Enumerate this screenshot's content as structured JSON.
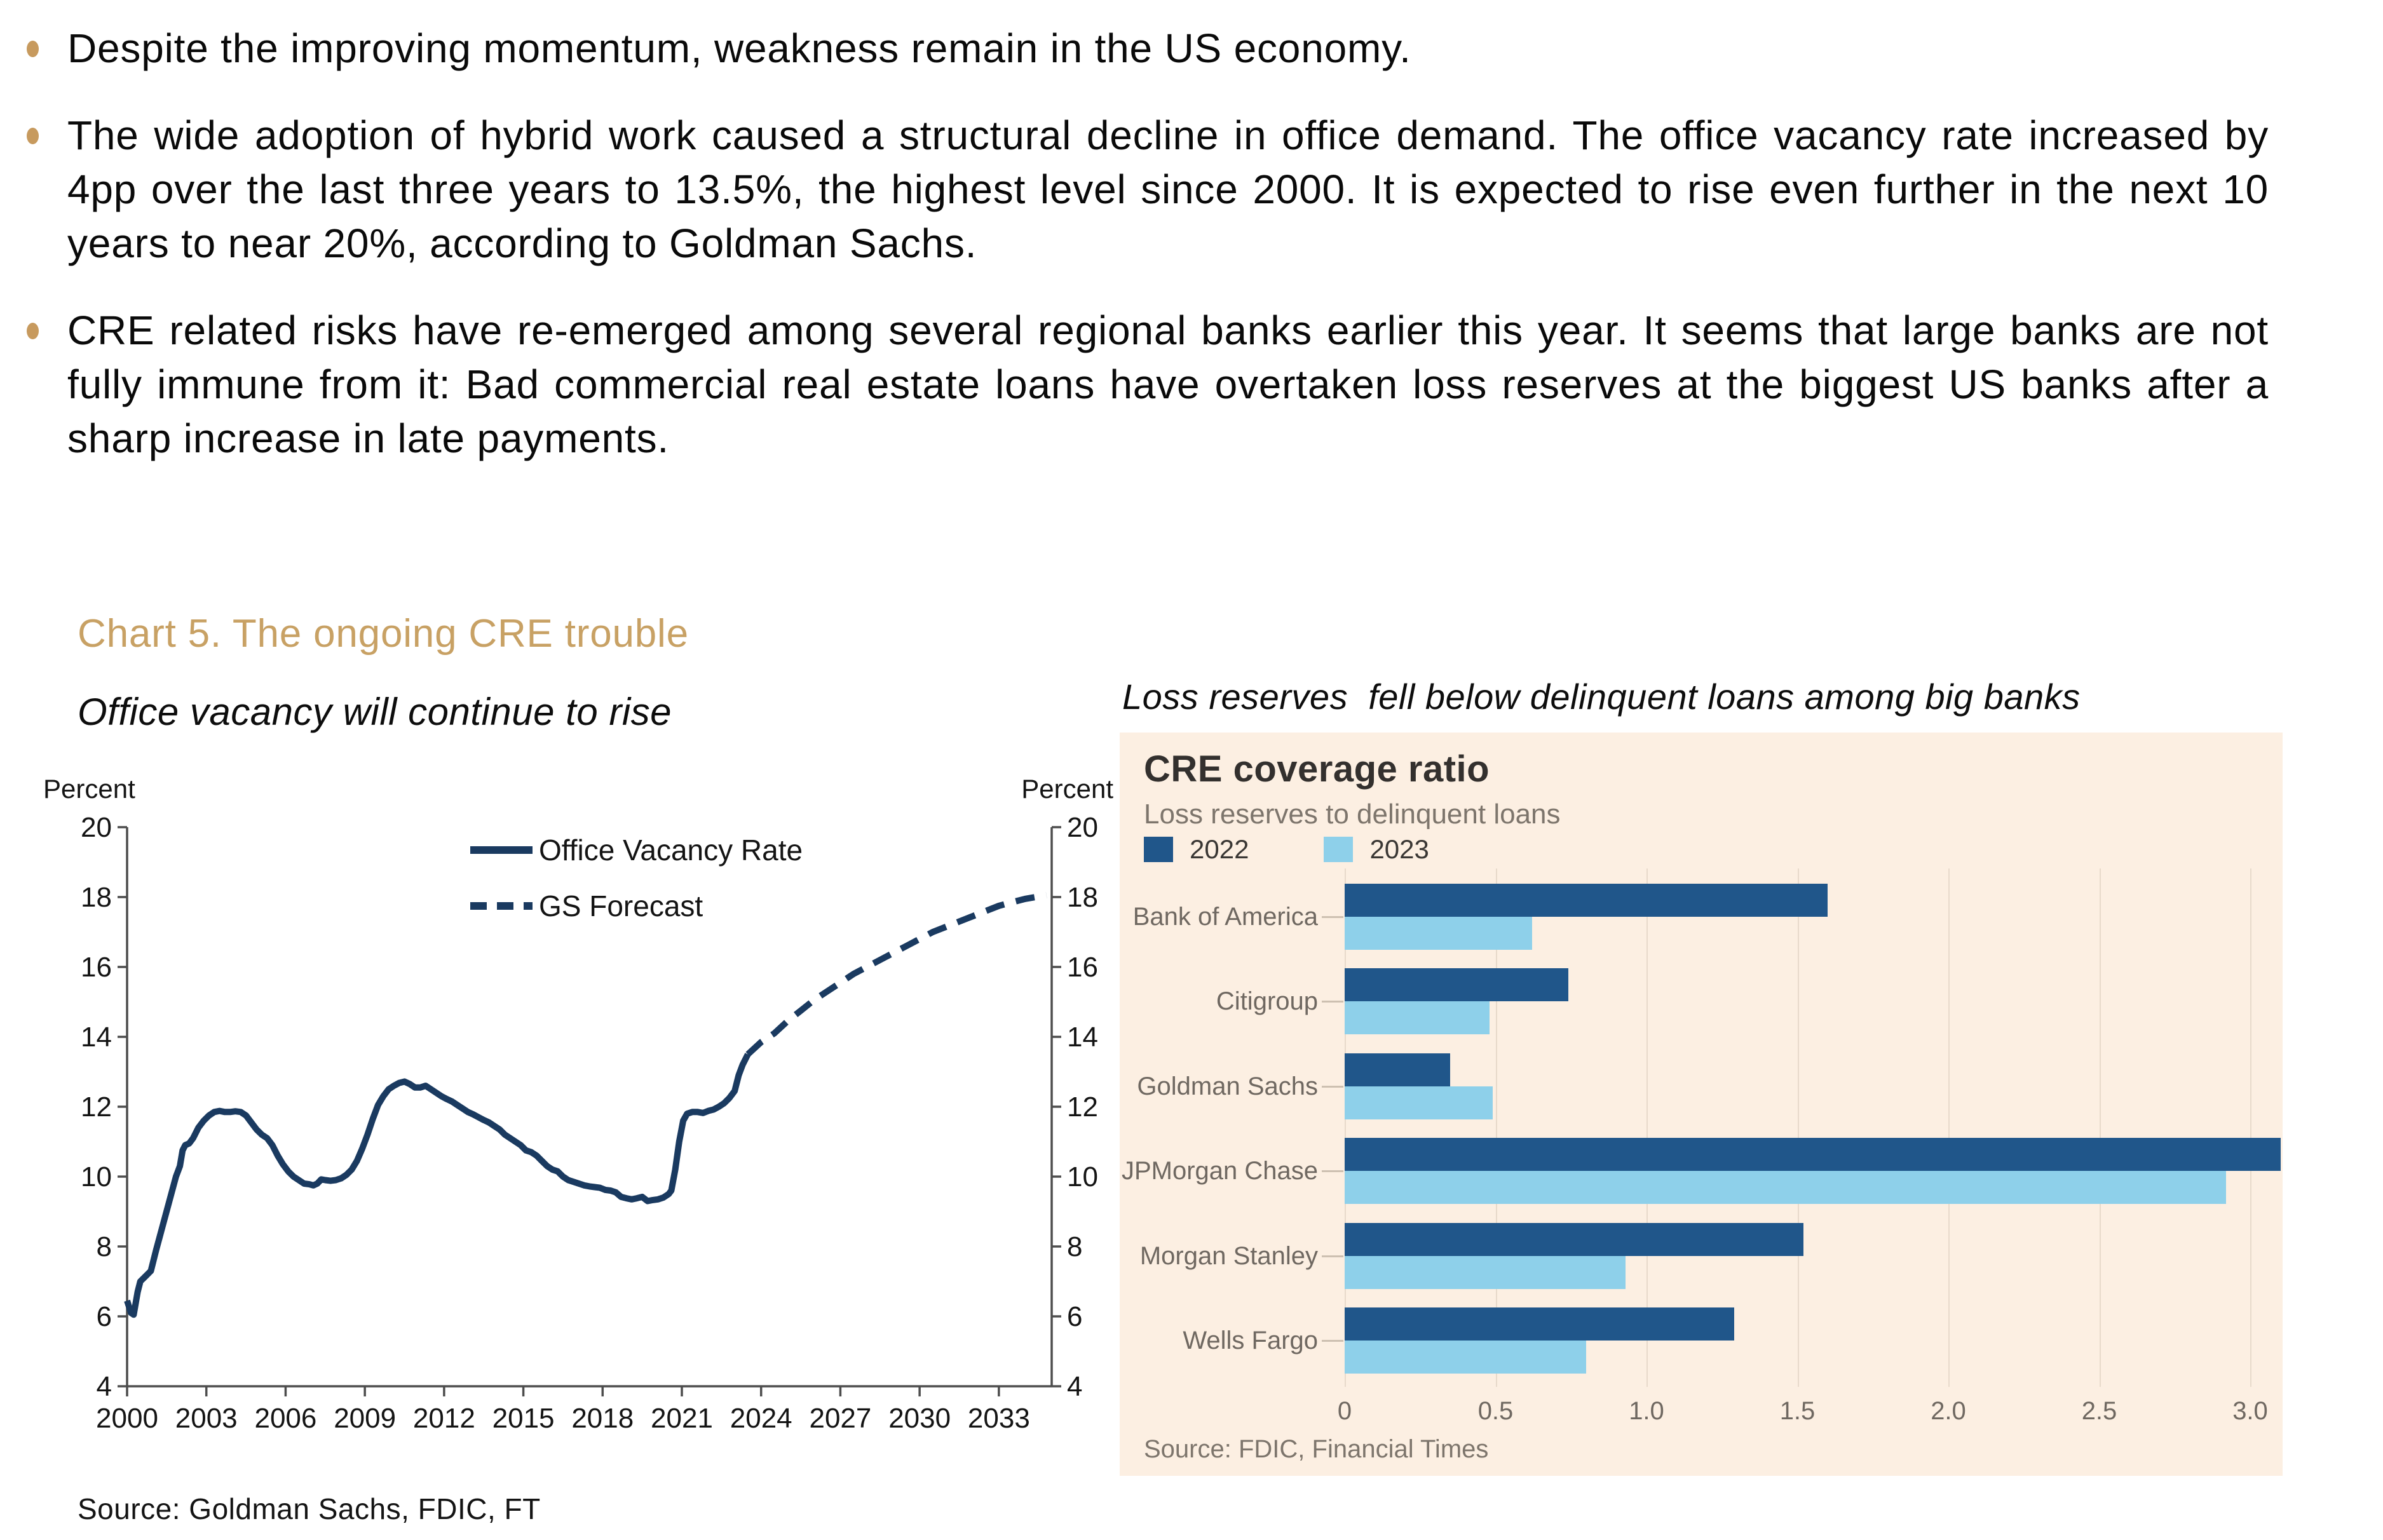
{
  "bullets": [
    "Despite the improving momentum, weakness remain in the US economy.",
    "The wide adoption of hybrid work caused a structural decline in office demand. The office vacancy rate increased by 4pp over the last three years to 13.5%, the highest level since 2000. It is expected to rise even further in the next 10 years to near 20%, according to Goldman Sachs.",
    "CRE related risks have re-emerged among several regional banks earlier this year. It seems that large banks are not fully immune from it: Bad commercial real estate loans have overtaken loss reserves at the biggest US banks after a sharp increase in late payments."
  ],
  "section": {
    "heading": "Chart 5. The ongoing CRE trouble"
  },
  "page_source": "Source: Goldman Sachs, FDIC, FT",
  "colors": {
    "bullet_dot": "#c79a5e",
    "heading_tan": "#c8a164",
    "navy_line": "#1a3a60",
    "bar_2022": "#20568a",
    "bar_2023": "#8ed0ea",
    "panel_bg": "#fcefe2",
    "panel_grid": "#e8dacb",
    "axis_gray": "#4d4d4d"
  },
  "chart_data": [
    {
      "type": "line",
      "title": "Office vacancy will continue to rise",
      "ylabel_left": "Percent",
      "ylabel_right": "Percent",
      "ylim": [
        4,
        20
      ],
      "yticks": [
        4,
        6,
        8,
        10,
        12,
        14,
        16,
        18,
        20
      ],
      "xlim": [
        2000,
        2035
      ],
      "xticks": [
        2000,
        2003,
        2006,
        2009,
        2012,
        2015,
        2018,
        2021,
        2024,
        2027,
        2030,
        2033
      ],
      "grid": false,
      "legend_position": "top-center-inside",
      "series": [
        {
          "name": "Office Vacancy Rate",
          "style": "solid",
          "color": "#1a3a60",
          "points": [
            [
              2000,
              6.45
            ],
            [
              2000.15,
              6.1
            ],
            [
              2000.25,
              6.05
            ],
            [
              2000.4,
              6.7
            ],
            [
              2000.5,
              7.0
            ],
            [
              2000.7,
              7.15
            ],
            [
              2000.9,
              7.3
            ],
            [
              2001.1,
              7.9
            ],
            [
              2001.35,
              8.6
            ],
            [
              2001.6,
              9.3
            ],
            [
              2001.85,
              10.0
            ],
            [
              2002,
              10.3
            ],
            [
              2002.1,
              10.75
            ],
            [
              2002.2,
              10.9
            ],
            [
              2002.35,
              10.95
            ],
            [
              2002.5,
              11.1
            ],
            [
              2002.7,
              11.4
            ],
            [
              2002.9,
              11.6
            ],
            [
              2003.1,
              11.75
            ],
            [
              2003.3,
              11.85
            ],
            [
              2003.5,
              11.88
            ],
            [
              2003.7,
              11.85
            ],
            [
              2003.9,
              11.85
            ],
            [
              2004.1,
              11.87
            ],
            [
              2004.3,
              11.85
            ],
            [
              2004.5,
              11.75
            ],
            [
              2004.7,
              11.55
            ],
            [
              2004.9,
              11.35
            ],
            [
              2005.1,
              11.2
            ],
            [
              2005.3,
              11.1
            ],
            [
              2005.5,
              10.9
            ],
            [
              2005.7,
              10.6
            ],
            [
              2005.9,
              10.35
            ],
            [
              2006.1,
              10.15
            ],
            [
              2006.3,
              10.0
            ],
            [
              2006.5,
              9.9
            ],
            [
              2006.7,
              9.8
            ],
            [
              2006.9,
              9.78
            ],
            [
              2007.05,
              9.75
            ],
            [
              2007.2,
              9.8
            ],
            [
              2007.35,
              9.92
            ],
            [
              2007.5,
              9.9
            ],
            [
              2007.7,
              9.88
            ],
            [
              2007.9,
              9.9
            ],
            [
              2008.1,
              9.95
            ],
            [
              2008.3,
              10.05
            ],
            [
              2008.5,
              10.2
            ],
            [
              2008.7,
              10.45
            ],
            [
              2008.9,
              10.8
            ],
            [
              2009.1,
              11.2
            ],
            [
              2009.3,
              11.65
            ],
            [
              2009.5,
              12.05
            ],
            [
              2009.7,
              12.3
            ],
            [
              2009.9,
              12.5
            ],
            [
              2010.1,
              12.6
            ],
            [
              2010.3,
              12.68
            ],
            [
              2010.5,
              12.72
            ],
            [
              2010.7,
              12.65
            ],
            [
              2010.9,
              12.55
            ],
            [
              2011.1,
              12.55
            ],
            [
              2011.3,
              12.6
            ],
            [
              2011.5,
              12.5
            ],
            [
              2011.7,
              12.4
            ],
            [
              2011.9,
              12.3
            ],
            [
              2012.1,
              12.22
            ],
            [
              2012.3,
              12.15
            ],
            [
              2012.5,
              12.05
            ],
            [
              2012.7,
              11.95
            ],
            [
              2012.9,
              11.85
            ],
            [
              2013.1,
              11.78
            ],
            [
              2013.3,
              11.7
            ],
            [
              2013.5,
              11.62
            ],
            [
              2013.7,
              11.55
            ],
            [
              2013.9,
              11.45
            ],
            [
              2014.1,
              11.35
            ],
            [
              2014.3,
              11.2
            ],
            [
              2014.5,
              11.1
            ],
            [
              2014.9,
              10.9
            ],
            [
              2015.1,
              10.75
            ],
            [
              2015.3,
              10.7
            ],
            [
              2015.5,
              10.6
            ],
            [
              2015.7,
              10.45
            ],
            [
              2015.9,
              10.3
            ],
            [
              2016.1,
              10.2
            ],
            [
              2016.3,
              10.15
            ],
            [
              2016.5,
              10.0
            ],
            [
              2016.7,
              9.9
            ],
            [
              2016.9,
              9.85
            ],
            [
              2017.1,
              9.8
            ],
            [
              2017.3,
              9.75
            ],
            [
              2017.5,
              9.72
            ],
            [
              2017.7,
              9.7
            ],
            [
              2017.9,
              9.68
            ],
            [
              2018.1,
              9.62
            ],
            [
              2018.3,
              9.6
            ],
            [
              2018.5,
              9.55
            ],
            [
              2018.7,
              9.42
            ],
            [
              2018.9,
              9.38
            ],
            [
              2019.1,
              9.35
            ],
            [
              2019.3,
              9.38
            ],
            [
              2019.5,
              9.42
            ],
            [
              2019.7,
              9.3
            ],
            [
              2019.9,
              9.33
            ],
            [
              2020.1,
              9.35
            ],
            [
              2020.3,
              9.4
            ],
            [
              2020.5,
              9.5
            ],
            [
              2020.6,
              9.6
            ],
            [
              2020.75,
              10.2
            ],
            [
              2020.9,
              11.0
            ],
            [
              2021.05,
              11.6
            ],
            [
              2021.2,
              11.8
            ],
            [
              2021.4,
              11.85
            ],
            [
              2021.6,
              11.85
            ],
            [
              2021.8,
              11.82
            ],
            [
              2022,
              11.88
            ],
            [
              2022.2,
              11.92
            ],
            [
              2022.4,
              12.0
            ],
            [
              2022.6,
              12.1
            ],
            [
              2022.8,
              12.25
            ],
            [
              2023,
              12.45
            ],
            [
              2023.15,
              12.9
            ],
            [
              2023.3,
              13.2
            ],
            [
              2023.5,
              13.5
            ]
          ]
        },
        {
          "name": "GS Forecast",
          "style": "dashed",
          "color": "#1a3a60",
          "points": [
            [
              2023.5,
              13.5
            ],
            [
              2024,
              13.85
            ],
            [
              2024.5,
              14.1
            ],
            [
              2025,
              14.45
            ],
            [
              2025.5,
              14.75
            ],
            [
              2026,
              15.05
            ],
            [
              2026.5,
              15.3
            ],
            [
              2027,
              15.55
            ],
            [
              2027.5,
              15.8
            ],
            [
              2028,
              16.0
            ],
            [
              2028.5,
              16.2
            ],
            [
              2029,
              16.4
            ],
            [
              2029.5,
              16.6
            ],
            [
              2030,
              16.8
            ],
            [
              2030.5,
              17.0
            ],
            [
              2031,
              17.15
            ],
            [
              2031.5,
              17.3
            ],
            [
              2032,
              17.45
            ],
            [
              2032.5,
              17.6
            ],
            [
              2033,
              17.75
            ],
            [
              2033.5,
              17.85
            ],
            [
              2034,
              17.95
            ],
            [
              2034.8,
              18.05
            ]
          ]
        }
      ]
    },
    {
      "type": "bar",
      "orientation": "horizontal",
      "title": "Loss reserves  fell below delinquent loans among big banks",
      "panel_title": "CRE coverage ratio",
      "panel_subtitle": "Loss reserves to delinquent loans",
      "source": "Source: FDIC, Financial Times",
      "categories": [
        "Bank of America",
        "Citigroup",
        "Goldman Sachs",
        "JPMorgan Chase",
        "Morgan Stanley",
        "Wells Fargo"
      ],
      "series": [
        {
          "name": "2022",
          "color": "#20568a",
          "values": [
            1.6,
            0.74,
            0.35,
            3.1,
            1.52,
            1.29
          ]
        },
        {
          "name": "2023",
          "color": "#8ed0ea",
          "values": [
            0.62,
            0.48,
            0.49,
            2.92,
            0.93,
            0.8
          ]
        }
      ],
      "xticks": [
        0,
        0.5,
        1.0,
        1.5,
        2.0,
        2.5,
        3.0
      ],
      "xlim": [
        0,
        3.1
      ],
      "grid": true,
      "legend_position": "top-left"
    }
  ]
}
